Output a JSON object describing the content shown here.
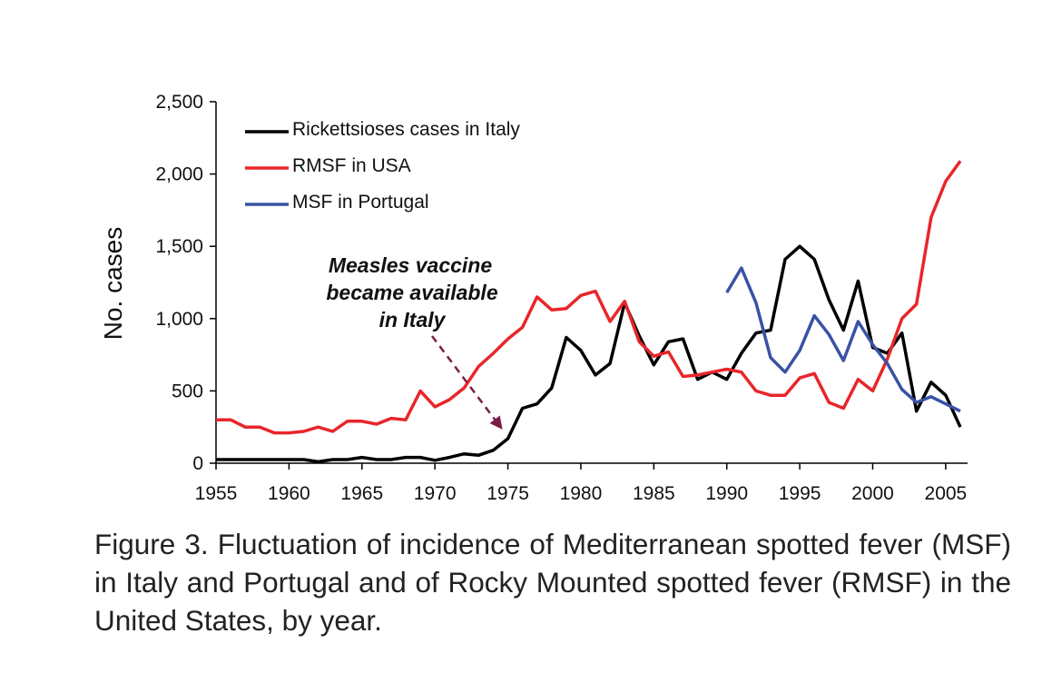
{
  "caption": "Figure 3. Fluctuation of incidence of Mediterranean spotted fever (MSF) in Italy and Portugal and of Rocky Mounted spotted fever (RMSF) in the United States, by year.",
  "annotation": {
    "lines": [
      "Measles vaccine",
      "became available",
      "in Italy"
    ],
    "arrow_target": [
      1975,
      170
    ],
    "color": "#7a1d47"
  },
  "chart_data": {
    "type": "line",
    "title": "",
    "xlabel": "",
    "ylabel": "No. cases",
    "xlim": [
      1955,
      2006.5
    ],
    "ylim": [
      0,
      2500
    ],
    "xticks": [
      1955,
      1960,
      1965,
      1970,
      1975,
      1980,
      1985,
      1990,
      1995,
      2000,
      2005
    ],
    "yticks": [
      0,
      500,
      1000,
      1500,
      2000,
      2500
    ],
    "ytick_labels": [
      "0",
      "500",
      "1,000",
      "1,500",
      "2,000",
      "2,500"
    ],
    "grid": false,
    "legend": "top-left",
    "series": [
      {
        "name": "Rickettsioses cases in Italy",
        "color": "#000000",
        "x": [
          1955,
          1956,
          1957,
          1958,
          1959,
          1960,
          1961,
          1962,
          1963,
          1964,
          1965,
          1966,
          1967,
          1968,
          1969,
          1970,
          1971,
          1972,
          1973,
          1974,
          1975,
          1976,
          1977,
          1978,
          1979,
          1980,
          1981,
          1982,
          1983,
          1984,
          1985,
          1986,
          1987,
          1988,
          1989,
          1990,
          1991,
          1992,
          1993,
          1994,
          1995,
          1996,
          1997,
          1998,
          1999,
          2000,
          2001,
          2002,
          2003,
          2004,
          2005,
          2006
        ],
        "y": [
          25,
          25,
          25,
          25,
          25,
          25,
          25,
          10,
          25,
          25,
          40,
          25,
          25,
          40,
          40,
          20,
          40,
          65,
          55,
          90,
          170,
          380,
          410,
          520,
          870,
          780,
          610,
          690,
          1110,
          880,
          680,
          840,
          860,
          580,
          630,
          580,
          760,
          900,
          920,
          1410,
          1500,
          1410,
          1130,
          920,
          1260,
          800,
          760,
          900,
          360,
          560,
          470,
          250
        ]
      },
      {
        "name": "RMSF in USA",
        "color": "#e8262a",
        "x": [
          1955,
          1956,
          1957,
          1958,
          1959,
          1960,
          1961,
          1962,
          1963,
          1964,
          1965,
          1966,
          1967,
          1968,
          1969,
          1970,
          1971,
          1972,
          1973,
          1974,
          1975,
          1976,
          1977,
          1978,
          1979,
          1980,
          1981,
          1982,
          1983,
          1984,
          1985,
          1986,
          1987,
          1988,
          1989,
          1990,
          1991,
          1992,
          1993,
          1994,
          1995,
          1996,
          1997,
          1998,
          1999,
          2000,
          2001,
          2002,
          2003,
          2004,
          2005,
          2006
        ],
        "y": [
          300,
          300,
          250,
          250,
          210,
          210,
          220,
          250,
          220,
          290,
          290,
          270,
          310,
          300,
          500,
          390,
          440,
          520,
          670,
          760,
          860,
          940,
          1150,
          1060,
          1070,
          1160,
          1190,
          980,
          1120,
          840,
          740,
          770,
          600,
          610,
          630,
          650,
          630,
          500,
          470,
          470,
          590,
          620,
          420,
          380,
          580,
          500,
          720,
          1000,
          1100,
          1700,
          1950,
          2090
        ]
      },
      {
        "name": "MSF in Portugal",
        "color": "#3a52a4",
        "x": [
          1990,
          1991,
          1992,
          1993,
          1994,
          1995,
          1996,
          1997,
          1998,
          1999,
          2000,
          2001,
          2002,
          2003,
          2004,
          2005,
          2006
        ],
        "y": [
          1180,
          1350,
          1110,
          730,
          630,
          780,
          1020,
          890,
          710,
          980,
          820,
          690,
          510,
          420,
          460,
          410,
          360
        ]
      }
    ]
  }
}
